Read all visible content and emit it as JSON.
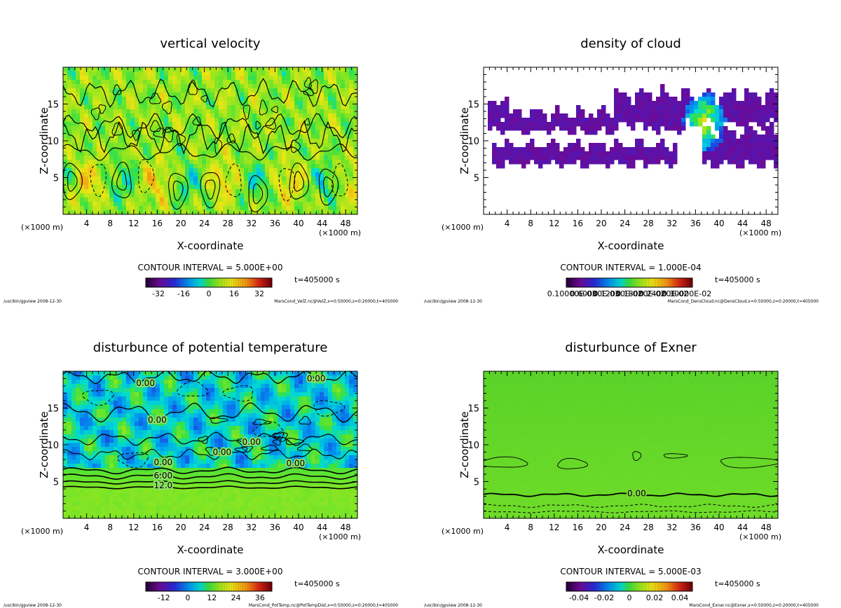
{
  "chart_data": [
    {
      "type": "heatmap",
      "title": "vertical velocity",
      "xlabel": "X-coordinate",
      "ylabel": "Z-coordinate",
      "x_unit": "(×1000 m)",
      "xlim": [
        0,
        50
      ],
      "ylim": [
        0,
        20
      ],
      "xticks": [
        4,
        8,
        12,
        16,
        20,
        24,
        28,
        32,
        36,
        40,
        44,
        48
      ],
      "yticks": [
        5,
        10,
        15
      ],
      "contour_interval": "CONTOUR INTERVAL = 5.000E+00",
      "time": "t=405000 s",
      "colorbar_ticks": [
        "-32",
        "-16",
        "0",
        "16",
        "32"
      ],
      "colorbar_range": [
        -40,
        40
      ],
      "footer_left": "/usr/bin/gpview  2008-12-30",
      "footer_right": "MarsCond_VelZ.nc@VelZ,x=0:50000,z=0:20000,t=405000",
      "contour_labels": []
    },
    {
      "type": "heatmap",
      "title": "density of cloud",
      "xlabel": "X-coordinate",
      "ylabel": "Z-coordinate",
      "x_unit": "(×1000 m)",
      "xlim": [
        0,
        50
      ],
      "ylim": [
        0,
        20
      ],
      "xticks": [
        4,
        8,
        12,
        16,
        20,
        24,
        28,
        32,
        36,
        40,
        44,
        48
      ],
      "yticks": [
        5,
        10,
        15
      ],
      "contour_interval": "CONTOUR INTERVAL = 1.000E-04",
      "time": "t=405000 s",
      "colorbar_ticks": [
        "0.10000E-03",
        "0.60000E-03",
        "0.12000E-02",
        "0.18000E-02",
        "0.24000E-02",
        "0.30000E-02"
      ],
      "colorbar_range": [
        0,
        3.1
      ],
      "footer_left": "/usr/bin/gpview  2008-12-30",
      "footer_right": "MarsCond_DensCloud.nc@DensCloud,x=0:50000,z=0:20000,t=405000",
      "contour_labels": []
    },
    {
      "type": "heatmap",
      "title": "disturbunce of potential temperature",
      "xlabel": "X-coordinate",
      "ylabel": "Z-coordinate",
      "x_unit": "(×1000 m)",
      "xlim": [
        0,
        50
      ],
      "ylim": [
        0,
        20
      ],
      "xticks": [
        4,
        8,
        12,
        16,
        20,
        24,
        28,
        32,
        36,
        40,
        44,
        48
      ],
      "yticks": [
        5,
        10,
        15
      ],
      "contour_interval": "CONTOUR INTERVAL = 3.000E+00",
      "time": "t=405000 s",
      "colorbar_ticks": [
        "-12",
        "0",
        "12",
        "24",
        "36"
      ],
      "colorbar_range": [
        -21,
        42
      ],
      "footer_left": "/usr/bin/gpview  2008-12-30",
      "footer_right": "MarsCond_PotTemp.nc@PotTempDist,x=0:50000,z=0:20000,t=405000",
      "contour_labels": [
        {
          "text": "0.00",
          "x": 14,
          "z": 18.4
        },
        {
          "text": "0.00",
          "x": 43,
          "z": 19.0
        },
        {
          "text": "0.00",
          "x": 16,
          "z": 13.4
        },
        {
          "text": "0.00",
          "x": 32,
          "z": 10.4
        },
        {
          "text": "0.00",
          "x": 27,
          "z": 9.0
        },
        {
          "text": "0.00",
          "x": 39.5,
          "z": 7.5
        },
        {
          "text": "0.00",
          "x": 17,
          "z": 7.6
        },
        {
          "text": "6.00",
          "x": 17,
          "z": 5.8
        },
        {
          "text": "12.0",
          "x": 17,
          "z": 4.5
        }
      ]
    },
    {
      "type": "heatmap",
      "title": "disturbunce of Exner",
      "xlabel": "X-coordinate",
      "ylabel": "Z-coordinate",
      "x_unit": "(×1000 m)",
      "xlim": [
        0,
        50
      ],
      "ylim": [
        0,
        20
      ],
      "xticks": [
        4,
        8,
        12,
        16,
        20,
        24,
        28,
        32,
        36,
        40,
        44,
        48
      ],
      "yticks": [
        5,
        10,
        15
      ],
      "contour_interval": "CONTOUR INTERVAL = 5.000E-03",
      "time": "t=405000 s",
      "colorbar_ticks": [
        "-0.04",
        "-0.02",
        "0",
        "0.02",
        "0.04"
      ],
      "colorbar_range": [
        -0.05,
        0.05
      ],
      "footer_left": "/usr/bin/gpview  2008-12-30",
      "footer_right": "MarsCond_Exner.nc@Exner,x=0:50000,z=0:20000,t=405000",
      "contour_labels": [
        {
          "text": "0.00",
          "x": 26,
          "z": 3.4
        }
      ]
    }
  ]
}
